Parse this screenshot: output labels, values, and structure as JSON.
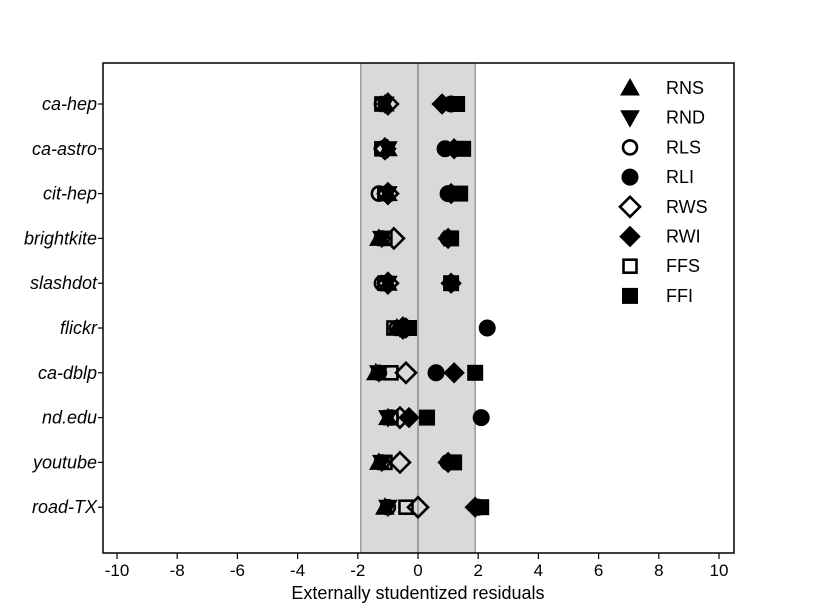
{
  "chart_data": {
    "type": "scatter",
    "title": "",
    "xlabel": "Externally studentized residuals",
    "ylabel": "",
    "xlim": [
      -10.5,
      10.5
    ],
    "xticks": [
      -10,
      -8,
      -6,
      -4,
      -2,
      0,
      2,
      4,
      6,
      8,
      10
    ],
    "xtick_labels": [
      "-10",
      "-8",
      "-6",
      "-4",
      "-2",
      "0",
      "2",
      "4",
      "6",
      "8",
      "10"
    ],
    "shaded_band": [
      -1.9,
      1.9
    ],
    "reference_line": 0,
    "grid": false,
    "legend_position": "top-right",
    "categories": [
      "ca-hep",
      "ca-astro",
      "cit-hep",
      "brightkite",
      "slashdot",
      "flickr",
      "ca-dblp",
      "nd.edu",
      "youtube",
      "road-TX"
    ],
    "series": [
      {
        "name": "RNS",
        "marker": "triangle-up",
        "filled": true,
        "values": [
          -1.1,
          -1.0,
          -1.0,
          -1.3,
          -1.0,
          -0.7,
          -1.4,
          -1.0,
          -1.3,
          -1.1
        ]
      },
      {
        "name": "RND",
        "marker": "triangle-down",
        "filled": true,
        "values": [
          -1.1,
          -1.0,
          -1.0,
          -1.2,
          -1.0,
          -0.6,
          -1.3,
          -1.0,
          -1.2,
          -1.0
        ]
      },
      {
        "name": "RLS",
        "marker": "circle",
        "filled": false,
        "values": [
          -1.2,
          -1.2,
          -1.3,
          -1.2,
          -1.2,
          -0.7,
          -1.3,
          -0.9,
          -1.2,
          -1.0
        ]
      },
      {
        "name": "RLI",
        "marker": "circle",
        "filled": true,
        "values": [
          1.1,
          0.9,
          1.0,
          1.0,
          1.1,
          2.3,
          0.6,
          2.1,
          1.0,
          2.0
        ]
      },
      {
        "name": "RWS",
        "marker": "diamond",
        "filled": false,
        "values": [
          -1.0,
          -1.1,
          -1.0,
          -0.8,
          -1.0,
          -0.5,
          -0.4,
          -0.6,
          -0.6,
          0.0
        ]
      },
      {
        "name": "RWI",
        "marker": "diamond",
        "filled": true,
        "values": [
          0.8,
          1.2,
          1.1,
          1.0,
          1.1,
          -0.4,
          1.2,
          -0.3,
          1.0,
          1.9
        ]
      },
      {
        "name": "FFS",
        "marker": "square",
        "filled": false,
        "values": [
          -1.2,
          -1.2,
          -1.1,
          -1.1,
          -1.1,
          -0.8,
          -0.9,
          -0.9,
          -1.1,
          -0.4
        ]
      },
      {
        "name": "FFI",
        "marker": "square",
        "filled": true,
        "values": [
          1.3,
          1.5,
          1.4,
          1.1,
          1.1,
          -0.3,
          1.9,
          0.3,
          1.2,
          2.1
        ]
      }
    ]
  }
}
